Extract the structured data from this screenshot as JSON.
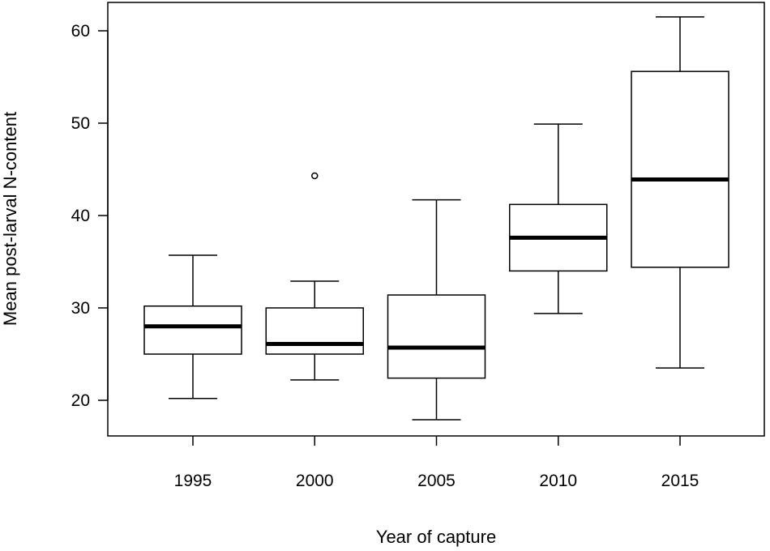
{
  "chart_data": {
    "type": "boxplot",
    "title": "",
    "xlabel": "Year of capture",
    "ylabel": "Mean post-larval N-content",
    "ylim": [
      15,
      63
    ],
    "y_ticks": [
      20,
      30,
      40,
      50,
      60
    ],
    "grid": false,
    "categories": [
      "1995",
      "2000",
      "2005",
      "2010",
      "2015"
    ],
    "boxes": [
      {
        "category": "1995",
        "whisker_low": 20.2,
        "q1": 25.0,
        "median": 28.0,
        "q3": 30.2,
        "whisker_high": 35.7,
        "outliers": []
      },
      {
        "category": "2000",
        "whisker_low": 22.2,
        "q1": 25.0,
        "median": 26.1,
        "q3": 30.0,
        "whisker_high": 32.9,
        "outliers": [
          44.3
        ]
      },
      {
        "category": "2005",
        "whisker_low": 17.9,
        "q1": 22.4,
        "median": 25.7,
        "q3": 31.4,
        "whisker_high": 41.7,
        "outliers": []
      },
      {
        "category": "2010",
        "whisker_low": 29.4,
        "q1": 34.0,
        "median": 37.6,
        "q3": 41.2,
        "whisker_high": 49.9,
        "outliers": []
      },
      {
        "category": "2015",
        "whisker_low": 23.5,
        "q1": 34.4,
        "median": 43.9,
        "q3": 55.6,
        "whisker_high": 61.5,
        "outliers": []
      }
    ]
  }
}
